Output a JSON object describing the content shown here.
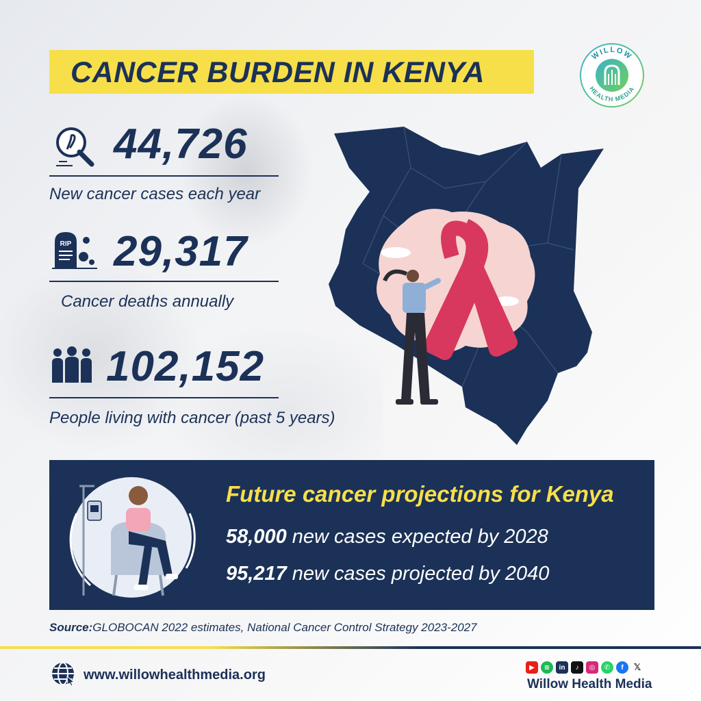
{
  "title": "CANCER BURDEN IN KENYA",
  "logo": {
    "top_text": "WILLOW",
    "bottom_text": "HEALTH MEDIA"
  },
  "stats": [
    {
      "icon": "cancer-search-icon",
      "value": "44,726",
      "label": "New cancer cases each year"
    },
    {
      "icon": "rip-tombstone-icon",
      "value": "29,317",
      "label": "Cancer deaths annually"
    },
    {
      "icon": "people-group-icon",
      "value": "102,152",
      "label": "People living with cancer (past 5 years)"
    }
  ],
  "projections": {
    "title": "Future cancer projections for Kenya",
    "lines": [
      {
        "value": "58,000",
        "text": " new cases expected by 2028"
      },
      {
        "value": "95,217",
        "text": " new cases projected by 2040"
      }
    ]
  },
  "source": {
    "label": "Source:",
    "text": "GLOBOCAN 2022 estimates, National Cancer Control Strategy 2023-2027"
  },
  "footer": {
    "url": "www.willowhealthmedia.org",
    "brand": "Willow Health Media",
    "socials": [
      "youtube-icon",
      "spotify-icon",
      "linkedin-icon",
      "tiktok-icon",
      "instagram-icon",
      "whatsapp-icon",
      "facebook-icon",
      "x-icon"
    ]
  },
  "colors": {
    "navy": "#1b3157",
    "yellow": "#f7df4a",
    "ribbon": "#d8385e",
    "blush": "#f6d4d2"
  }
}
